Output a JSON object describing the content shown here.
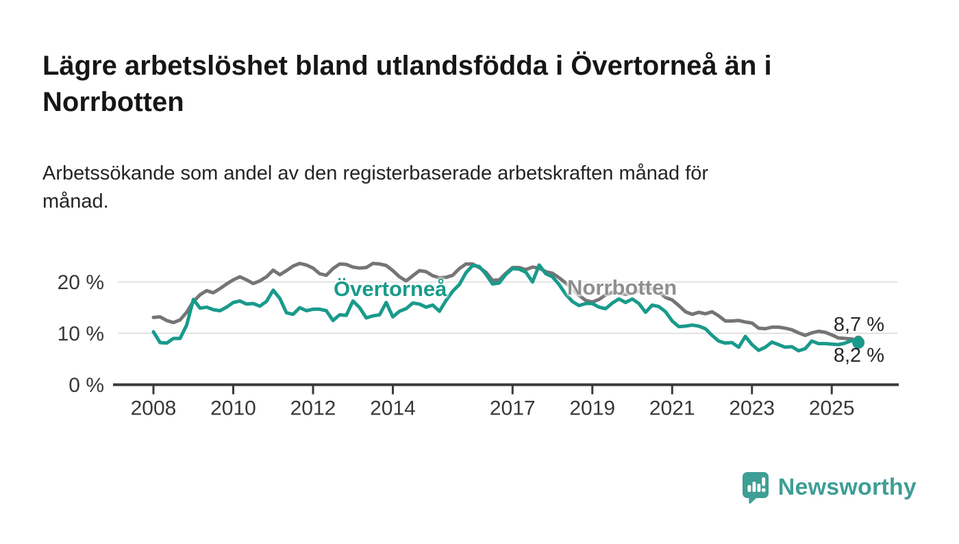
{
  "header": {
    "title_lines": [
      "Lägre arbetslöshet bland utlandsfödda i Övertorneå än i",
      "Norrbotten"
    ],
    "subtitle_lines": [
      "Arbetssökande som andel av den registerbaserade arbetskraften månad för",
      "månad."
    ]
  },
  "chart": {
    "series_labels": {
      "overtornea": "Övertorneå",
      "norrbotten": "Norrbotten"
    },
    "end_labels": {
      "norrbotten": "8,7 %",
      "overtornea": "8,2 %"
    }
  },
  "chart_data": {
    "type": "line",
    "title": "Lägre arbetslöshet bland utlandsfödda i Övertorneå än i Norrbotten",
    "subtitle": "Arbetssökande som andel av den registerbaserade arbetskraften månad för månad.",
    "x_start": 2008.0,
    "x_step": 0.16667,
    "x_end": 2025.667,
    "ylim": [
      0,
      25
    ],
    "yticks": [
      {
        "value": 20,
        "label": "20 %"
      },
      {
        "value": 10,
        "label": "10 %"
      },
      {
        "value": 0,
        "label": "0 %"
      }
    ],
    "xticks": [
      {
        "value": 2008,
        "label": "2008"
      },
      {
        "value": 2010,
        "label": "2010"
      },
      {
        "value": 2012,
        "label": "2012"
      },
      {
        "value": 2014,
        "label": "2014"
      },
      {
        "value": 2017,
        "label": "2017"
      },
      {
        "value": 2019,
        "label": "2019"
      },
      {
        "value": 2021,
        "label": "2021"
      },
      {
        "value": 2023,
        "label": "2023"
      },
      {
        "value": 2025,
        "label": "2025"
      }
    ],
    "grid": true,
    "legend_position": "inline-labels",
    "series": [
      {
        "name": "Norrbotten",
        "color": "#757575",
        "end_value": 8.7,
        "end_value_label": "8,7 %",
        "values": [
          13.1,
          13.2,
          12.5,
          12.1,
          12.6,
          14.1,
          16.2,
          17.5,
          18.3,
          17.9,
          18.7,
          19.6,
          20.4,
          21.0,
          20.4,
          19.7,
          20.2,
          21.0,
          22.3,
          21.4,
          22.2,
          23.1,
          23.6,
          23.3,
          22.7,
          21.6,
          21.3,
          22.6,
          23.5,
          23.4,
          22.9,
          22.7,
          22.8,
          23.6,
          23.5,
          23.2,
          22.2,
          21.0,
          20.2,
          21.2,
          22.2,
          22.0,
          21.2,
          20.8,
          20.9,
          21.3,
          22.6,
          23.5,
          23.5,
          22.8,
          21.9,
          20.3,
          20.4,
          21.7,
          22.8,
          22.8,
          22.4,
          22.9,
          22.7,
          22.0,
          21.7,
          20.8,
          19.8,
          18.7,
          17.4,
          16.4,
          16.1,
          16.6,
          17.5,
          18.0,
          17.8,
          17.6,
          17.8,
          18.3,
          18.9,
          18.7,
          18.0,
          17.0,
          16.5,
          15.4,
          14.2,
          13.7,
          14.1,
          13.8,
          14.2,
          13.4,
          12.4,
          12.4,
          12.5,
          12.2,
          12.0,
          11.0,
          10.9,
          11.2,
          11.2,
          11.0,
          10.7,
          10.1,
          9.6,
          10.1,
          10.4,
          10.2,
          9.7,
          9.1,
          9.0,
          8.9,
          8.7
        ]
      },
      {
        "name": "Övertorneå",
        "color": "#199a8b",
        "end_value": 8.2,
        "end_value_label": "8,2 %",
        "values": [
          10.3,
          8.2,
          8.1,
          9.0,
          9.0,
          11.6,
          16.6,
          14.9,
          15.1,
          14.6,
          14.4,
          15.1,
          16.0,
          16.3,
          15.7,
          15.8,
          15.3,
          16.2,
          18.4,
          16.8,
          14.0,
          13.7,
          15.0,
          14.4,
          14.7,
          14.7,
          14.4,
          12.5,
          13.6,
          13.5,
          16.3,
          15.0,
          13.0,
          13.4,
          13.6,
          16.0,
          13.2,
          14.3,
          14.8,
          15.9,
          15.7,
          15.1,
          15.5,
          14.3,
          16.4,
          18.2,
          19.5,
          21.8,
          23.2,
          23.0,
          21.5,
          19.6,
          19.8,
          21.5,
          22.6,
          22.5,
          21.9,
          20.0,
          23.3,
          21.6,
          21.0,
          19.5,
          17.6,
          16.2,
          15.4,
          15.8,
          15.8,
          15.1,
          14.8,
          15.9,
          16.7,
          16.0,
          16.7,
          15.8,
          14.1,
          15.5,
          15.2,
          14.2,
          12.4,
          11.3,
          11.4,
          11.6,
          11.4,
          10.9,
          9.6,
          8.5,
          8.1,
          8.2,
          7.3,
          9.4,
          7.8,
          6.7,
          7.3,
          8.3,
          7.8,
          7.3,
          7.4,
          6.6,
          7.0,
          8.5,
          8.0,
          8.0,
          7.9,
          7.8,
          8.1,
          8.6,
          8.2
        ]
      }
    ]
  },
  "colors": {
    "overtornea": "#199a8b",
    "norrbotten_line": "#757575",
    "norrbotten_label": "#8f8f8f",
    "grid": "#e0e0e0",
    "axis": "#3a3a3a",
    "tick_text": "#383838",
    "logo": "#3f9e95"
  },
  "footer": {
    "brand": "Newsworthy",
    "logo_icon": "bar-chart-speech-bubble-icon"
  }
}
